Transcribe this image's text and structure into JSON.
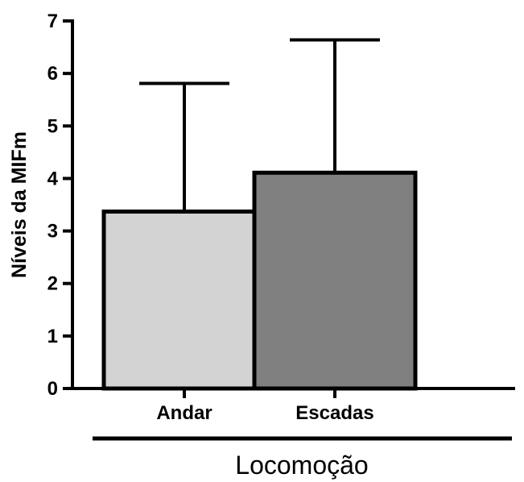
{
  "chart_data": {
    "type": "bar",
    "categories": [
      "Andar",
      "Escadas"
    ],
    "values": [
      3.37,
      4.11
    ],
    "error_upper": [
      5.81,
      6.64
    ],
    "colors": [
      "#d3d3d3",
      "#808080"
    ],
    "ylabel": "Níveis da MIFm",
    "group_label": "Locomoção",
    "ylim": [
      0,
      7
    ],
    "yticks": [
      "0",
      "1",
      "2",
      "3",
      "4",
      "5",
      "6",
      "7"
    ],
    "grid": false
  }
}
